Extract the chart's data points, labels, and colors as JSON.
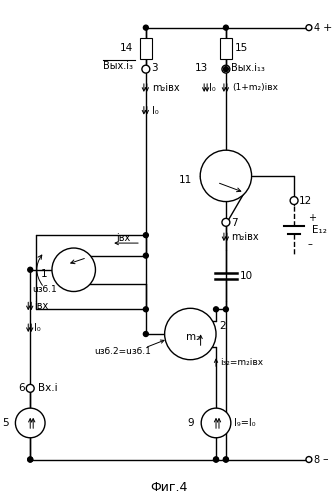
{
  "title": "Фиг.4",
  "bg_color": "#ffffff",
  "line_color": "#000000",
  "labels": {
    "node4": "4",
    "node3": "3",
    "node6": "6",
    "node5": "5",
    "node8": "8",
    "node9": "9",
    "node7": "7",
    "node10": "10",
    "node11": "11",
    "node12": "12",
    "node13": "13",
    "node14": "14",
    "node15": "15",
    "node1": "1",
    "node2": "2",
    "vx_i": "Вх.i",
    "vyx_i3": "Вых.i₃",
    "vyx_i13": "Вых.i₁₃",
    "m2ivx": "m₂iвх",
    "I0_label": "I₀",
    "I0_down": "I₀",
    "I9": "I₉=I₀",
    "i32": "i₃₂=m₂iвх",
    "m2ivx2": "m₂iвх",
    "ivx": "iвх",
    "ivx2": "iвх",
    "I0_2": "I₀",
    "uzb1": "uзб.1",
    "uzb2": "uзб.2=uзб.1",
    "E12": "E₁₂",
    "plus": "+",
    "minus": "–",
    "m2_label": "m₂",
    "one_plus_m2": "(1+m₂)iвх"
  }
}
